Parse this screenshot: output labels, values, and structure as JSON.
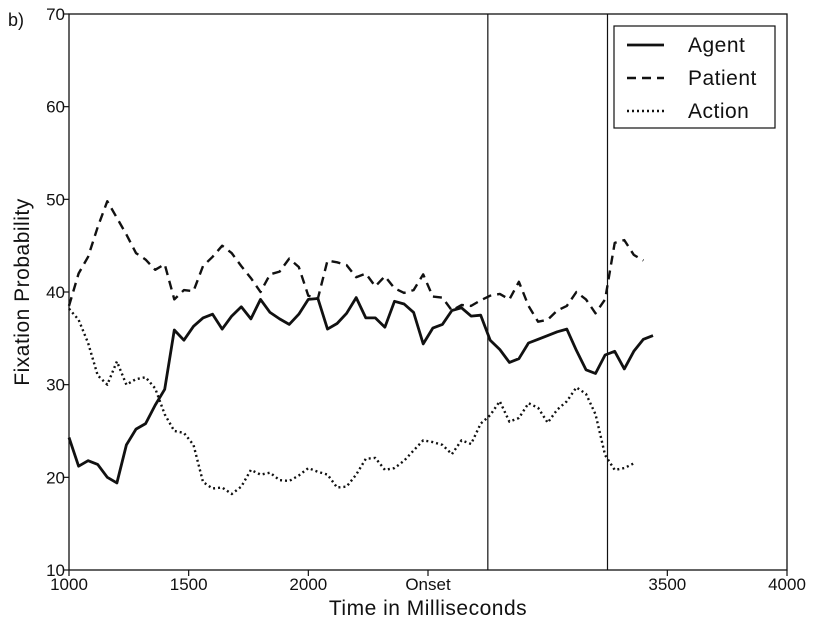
{
  "chart_data": {
    "type": "line",
    "panel_label": "b)",
    "xlabel": "Time in Milliseconds",
    "ylabel": "Fixation Probability",
    "xlim": [
      1000,
      4000
    ],
    "ylim": [
      10,
      70
    ],
    "xticks": [
      {
        "value": 1000,
        "label": "1000"
      },
      {
        "value": 1500,
        "label": "1500"
      },
      {
        "value": 2000,
        "label": "2000"
      },
      {
        "value": 2500,
        "label": "Onset"
      },
      {
        "value": 3500,
        "label": "3500"
      },
      {
        "value": 4000,
        "label": "4000"
      }
    ],
    "yticks": [
      10,
      20,
      30,
      40,
      50,
      60,
      70
    ],
    "grid": false,
    "legend_position": "top-right",
    "vertical_lines": [
      2750,
      3250
    ],
    "series": [
      {
        "name": "Agent",
        "style": "solid",
        "x": [
          1000,
          1040,
          1080,
          1120,
          1160,
          1200,
          1240,
          1280,
          1320,
          1360,
          1400,
          1440,
          1480,
          1520,
          1560,
          1600,
          1640,
          1680,
          1720,
          1760,
          1800,
          1840,
          1880,
          1920,
          1960,
          2000,
          2040,
          2080,
          2120,
          2160,
          2200,
          2240,
          2280,
          2320,
          2360,
          2400,
          2440,
          2480,
          2520,
          2560,
          2600,
          2640,
          2680,
          2720,
          2760,
          2800,
          2840,
          2880,
          2920,
          2960,
          3000,
          3040,
          3080,
          3120,
          3160,
          3200,
          3240,
          3280,
          3320,
          3360,
          3400,
          3440,
          3480,
          3520,
          3560,
          3600,
          3640,
          3680,
          3720,
          3760,
          3800,
          3840,
          3880,
          3920,
          3960,
          4000
        ],
        "values": [
          24.3,
          21.2,
          21.8,
          21.4,
          20.0,
          19.4,
          23.5,
          25.2,
          25.8,
          27.8,
          29.5,
          35.9,
          34.8,
          36.3,
          37.2,
          37.6,
          36.0,
          37.4,
          38.4,
          37.1,
          39.2,
          37.8,
          37.1,
          36.5,
          37.6,
          39.2,
          39.3,
          36.0,
          36.6,
          37.7,
          39.4,
          37.2,
          37.2,
          36.2,
          39.0,
          38.7,
          37.8,
          34.4,
          36.1,
          36.5,
          38.0,
          38.3,
          37.4,
          37.5,
          34.8,
          33.8,
          32.4,
          32.8,
          34.5,
          34.9,
          35.3,
          35.7,
          36.0,
          33.7,
          31.6,
          31.2,
          33.2,
          33.6,
          31.7,
          33.6,
          34.9,
          35.3,
          null,
          null,
          null,
          null,
          null,
          null,
          null,
          null,
          null,
          null,
          null,
          null,
          null,
          null
        ]
      },
      {
        "name": "Patient",
        "style": "dashed",
        "x": [
          1000,
          1040,
          1080,
          1120,
          1160,
          1200,
          1240,
          1280,
          1320,
          1360,
          1400,
          1440,
          1480,
          1520,
          1560,
          1600,
          1640,
          1680,
          1720,
          1760,
          1800,
          1840,
          1880,
          1920,
          1960,
          2000,
          2040,
          2080,
          2120,
          2160,
          2200,
          2240,
          2280,
          2320,
          2360,
          2400,
          2440,
          2480,
          2520,
          2560,
          2600,
          2640,
          2680,
          2720,
          2760,
          2800,
          2840,
          2880,
          2920,
          2960,
          3000,
          3040,
          3080,
          3120,
          3160,
          3200,
          3240,
          3280,
          3320,
          3360,
          3400,
          3440,
          3480,
          3520,
          3560,
          3600,
          3640,
          3680,
          3720,
          3760,
          3800,
          3840,
          3880,
          3920,
          3960,
          4000
        ],
        "values": [
          38.5,
          42.0,
          43.8,
          47.0,
          49.8,
          48.0,
          46.2,
          44.2,
          43.5,
          42.4,
          43.0,
          39.2,
          40.2,
          40.1,
          42.8,
          43.8,
          45.0,
          44.2,
          42.8,
          41.5,
          40.0,
          41.9,
          42.2,
          43.6,
          42.7,
          39.6,
          39.3,
          43.4,
          43.2,
          42.9,
          41.6,
          42.0,
          40.6,
          41.7,
          40.4,
          39.9,
          40.2,
          41.9,
          39.5,
          39.4,
          38.0,
          38.6,
          38.5,
          39.1,
          39.6,
          39.8,
          39.2,
          41.1,
          38.5,
          36.8,
          37.0,
          38.0,
          38.5,
          40.0,
          39.2,
          37.7,
          39.2,
          45.3,
          45.6,
          44.0,
          43.4,
          null,
          null,
          null,
          null,
          null,
          null,
          null,
          null,
          null,
          null,
          null,
          null,
          null,
          null,
          null
        ]
      },
      {
        "name": "Action",
        "style": "dotted",
        "x": [
          1000,
          1040,
          1080,
          1120,
          1160,
          1200,
          1240,
          1280,
          1320,
          1360,
          1400,
          1440,
          1480,
          1520,
          1560,
          1600,
          1640,
          1680,
          1720,
          1760,
          1800,
          1840,
          1880,
          1920,
          1960,
          2000,
          2040,
          2080,
          2120,
          2160,
          2200,
          2240,
          2280,
          2320,
          2360,
          2400,
          2440,
          2480,
          2520,
          2560,
          2600,
          2640,
          2680,
          2720,
          2760,
          2800,
          2840,
          2880,
          2920,
          2960,
          3000,
          3040,
          3080,
          3120,
          3160,
          3200,
          3240,
          3280,
          3320,
          3360,
          3400,
          3440,
          3480,
          3520,
          3560,
          3600,
          3640,
          3680,
          3720,
          3760,
          3800,
          3840,
          3880,
          3920,
          3960,
          4000
        ],
        "values": [
          38.2,
          37.0,
          34.5,
          31.0,
          30.0,
          32.5,
          30.0,
          30.6,
          30.8,
          29.6,
          26.8,
          25.0,
          24.8,
          23.5,
          19.5,
          18.8,
          18.9,
          18.2,
          19.0,
          20.8,
          20.3,
          20.5,
          19.7,
          19.6,
          20.2,
          21.0,
          20.6,
          20.3,
          18.9,
          19.0,
          20.3,
          22.0,
          22.1,
          20.8,
          21.0,
          21.8,
          22.9,
          24.0,
          23.8,
          23.5,
          22.5,
          24.0,
          23.6,
          25.8,
          26.7,
          28.2,
          26.0,
          26.4,
          28.0,
          27.5,
          25.9,
          27.3,
          28.2,
          29.7,
          29.0,
          26.8,
          22.4,
          20.8,
          21.0,
          21.5,
          null,
          null,
          null,
          null,
          null,
          null,
          null,
          null,
          null,
          null,
          null,
          null,
          null,
          null,
          null,
          null
        ]
      }
    ]
  }
}
